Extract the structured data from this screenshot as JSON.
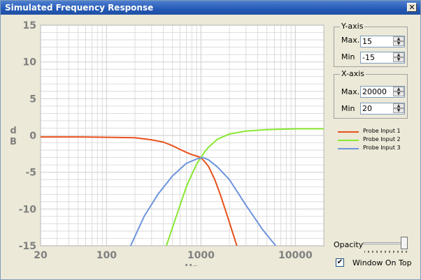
{
  "window": {
    "title": "Simulated Frequency Response",
    "close_glyph": "✕"
  },
  "yaxis_group": {
    "label": "Y-axis",
    "max_label": "Max.",
    "max_value": "15",
    "min_label": "Min",
    "min_value": "-15"
  },
  "xaxis_group": {
    "label": "X-axis",
    "max_label": "Max.",
    "max_value": "20000",
    "min_label": "Min",
    "min_value": "20"
  },
  "opacity": {
    "label": "Opacity",
    "value_fraction": 1.0
  },
  "window_on_top": {
    "label": "Window On Top",
    "checked": true
  },
  "icons": {
    "close": "close-icon",
    "spin_up": "spin-up-arrow-icon",
    "spin_down": "spin-down-arrow-icon",
    "checkmark": "checkmark-icon"
  },
  "colors": {
    "titlebar": "#2459b5",
    "plot_background": "#ffffff",
    "grid": "#d4d4d4",
    "axis_text": "#808080"
  },
  "chart_data": {
    "type": "line",
    "title": "",
    "xlabel": "Hz",
    "ylabel": "dB",
    "x_scale": "log",
    "xlim": [
      20,
      20000
    ],
    "ylim": [
      -15,
      15
    ],
    "x_ticks": [
      {
        "value": 20,
        "label": "20"
      },
      {
        "value": 100,
        "label": "100"
      },
      {
        "value": 1000,
        "label": "1000"
      },
      {
        "value": 10000,
        "label": "10000"
      }
    ],
    "y_ticks": [
      {
        "value": 15,
        "label": "15"
      },
      {
        "value": 10,
        "label": "10"
      },
      {
        "value": 5,
        "label": "5"
      },
      {
        "value": 0,
        "label": "0"
      },
      {
        "value": -5,
        "label": "-5"
      },
      {
        "value": -10,
        "label": "-10"
      },
      {
        "value": -15,
        "label": "-15"
      }
    ],
    "grid": true,
    "legend_position": "right",
    "series": [
      {
        "name": "Probe Input 1",
        "color": "#e8501c",
        "x": [
          20,
          50,
          100,
          200,
          300,
          400,
          500,
          600,
          700,
          800,
          900,
          1000,
          1100,
          1200,
          1400,
          1600,
          1800,
          2000,
          2200,
          2400
        ],
        "y": [
          -0.2,
          -0.2,
          -0.25,
          -0.3,
          -0.6,
          -0.9,
          -1.4,
          -1.9,
          -2.3,
          -2.6,
          -2.8,
          -3.0,
          -3.6,
          -4.2,
          -6.0,
          -8.0,
          -10.0,
          -11.8,
          -13.5,
          -15.0
        ]
      },
      {
        "name": "Probe Input 2",
        "color": "#88e830",
        "x": [
          430,
          500,
          600,
          700,
          800,
          900,
          1000,
          1100,
          1200,
          1500,
          2000,
          3000,
          5000,
          10000,
          20000
        ],
        "y": [
          -15.0,
          -12.5,
          -9.5,
          -7.0,
          -5.3,
          -3.9,
          -3.0,
          -2.2,
          -1.6,
          -0.5,
          0.2,
          0.6,
          0.8,
          0.9,
          0.9
        ]
      },
      {
        "name": "Probe Input 3",
        "color": "#6e94dc",
        "x": [
          180,
          250,
          350,
          500,
          700,
          900,
          1050,
          1200,
          1500,
          2000,
          3000,
          4500,
          6200
        ],
        "y": [
          -15.0,
          -11.0,
          -8.0,
          -5.5,
          -3.8,
          -3.2,
          -3.0,
          -3.3,
          -4.3,
          -6.0,
          -9.5,
          -12.8,
          -15.0
        ]
      }
    ]
  }
}
